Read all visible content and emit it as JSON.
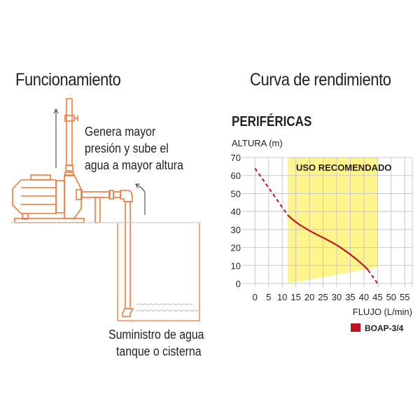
{
  "left_panel": {
    "title": "Funcionamiento",
    "caption_top": [
      "Genera mayor",
      "presión y sube el",
      "agua a mayor altura"
    ],
    "caption_bottom": [
      "Suministro de agua",
      "tanque o cisterna"
    ],
    "colors": {
      "pipe": "#f07a3a",
      "arrow": "#333333",
      "water": "#aaaaaa"
    }
  },
  "right_panel": {
    "title": "Curva de rendimiento",
    "subtitle": "PERIFÉRICAS"
  },
  "chart_data": {
    "type": "line",
    "ylabel": "ALTURA (m)",
    "xlabel": "FLUJO (L/min)",
    "xlim": [
      0,
      55
    ],
    "ylim": [
      0,
      70
    ],
    "x_ticks": [
      0,
      5,
      10,
      15,
      20,
      25,
      30,
      35,
      40,
      45,
      50,
      55
    ],
    "y_ticks": [
      0,
      10,
      20,
      30,
      40,
      50,
      60,
      70
    ],
    "grid": true,
    "recommended_zone": {
      "label": "USO RECOMENDADO",
      "polygon": [
        [
          12,
          70
        ],
        [
          45,
          70
        ],
        [
          45,
          9
        ],
        [
          12,
          0
        ]
      ],
      "color": "#fff58a"
    },
    "series": [
      {
        "name": "BOAP-3/4",
        "color": "#c1121f",
        "dashed_start": [
          [
            0,
            64
          ],
          [
            12,
            38
          ]
        ],
        "solid": [
          [
            12,
            38
          ],
          [
            15,
            34
          ],
          [
            20,
            29.2
          ],
          [
            25,
            25.5
          ],
          [
            30,
            21.5
          ],
          [
            35,
            16.3
          ],
          [
            40,
            10
          ],
          [
            41.5,
            7.5
          ]
        ],
        "dashed_end": [
          [
            41.5,
            7.5
          ],
          [
            45,
            0
          ]
        ]
      }
    ],
    "legend": {
      "position": "bottom-right",
      "label": "BOAP-3/4"
    }
  }
}
